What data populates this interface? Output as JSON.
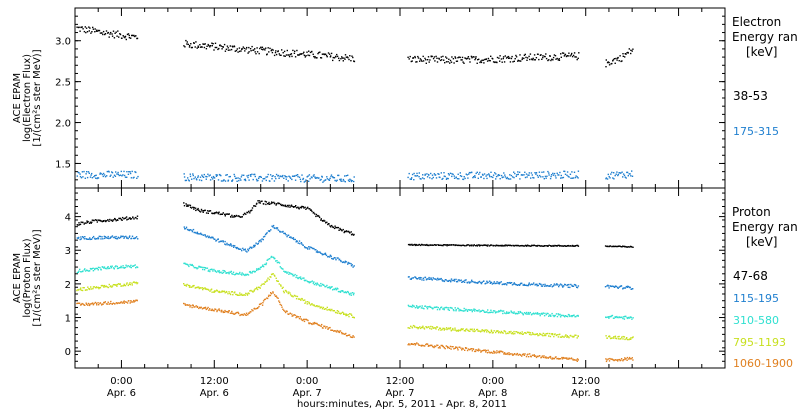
{
  "chart_data": [
    {
      "type": "scatter",
      "panel": "electron",
      "ylabel": [
        "ACE EPAM",
        "log(Electron Flux)",
        "[1/(cm²s ster MeV)]"
      ],
      "ylim": [
        1.2,
        3.4
      ],
      "yticks": [
        "1.5",
        "2.0",
        "2.5",
        "3.0"
      ],
      "ytick_values": [
        1.5,
        2.0,
        2.5,
        3.0
      ],
      "legend_title": [
        "Electron",
        "Energy ran",
        "[keV]"
      ],
      "series": [
        {
          "name": "38-53",
          "color": "#000000",
          "segments": [
            {
              "x": [
                -5.8,
                -2.0,
                2.0
              ],
              "y": [
                3.16,
                3.1,
                3.05
              ]
            },
            {
              "x": [
                8.0,
                16.0,
                24.0,
                30.0
              ],
              "y": [
                2.97,
                2.9,
                2.84,
                2.79
              ]
            },
            {
              "x": [
                37.0,
                44.0,
                52.0,
                59.0
              ],
              "y": [
                2.78,
                2.77,
                2.8,
                2.82
              ]
            },
            {
              "x": [
                62.5,
                64.5,
                66.0
              ],
              "y": [
                2.73,
                2.8,
                2.9
              ]
            }
          ]
        },
        {
          "name": "175-315",
          "color": "#1f7fcf",
          "segments": [
            {
              "x": [
                -5.8,
                2.0
              ],
              "y": [
                1.37,
                1.37
              ]
            },
            {
              "x": [
                8.0,
                30.0
              ],
              "y": [
                1.34,
                1.32
              ]
            },
            {
              "x": [
                37.0,
                59.0
              ],
              "y": [
                1.35,
                1.37
              ]
            },
            {
              "x": [
                62.5,
                66.0
              ],
              "y": [
                1.36,
                1.38
              ]
            }
          ]
        }
      ]
    },
    {
      "type": "scatter",
      "panel": "proton",
      "ylabel": [
        "ACE EPAM",
        "log(Proton Flux)",
        "[1/(cm²s ster MeV)]"
      ],
      "ylim": [
        -0.5,
        4.85
      ],
      "yticks": [
        "0",
        "1",
        "2",
        "3",
        "4"
      ],
      "ytick_values": [
        0,
        1,
        2,
        3,
        4
      ],
      "legend_title": [
        "Proton",
        "Energy ran",
        "[keV]"
      ],
      "xlabel": "hours:minutes, Apr.  5, 2011 - Apr.  8, 2011",
      "xlim": [
        -6.0,
        78.0
      ],
      "x_major_ticks": [
        0,
        12,
        24,
        36,
        48,
        60,
        72
      ],
      "x_minor_ticks": [
        -3,
        3,
        6,
        9,
        15,
        18,
        21,
        27,
        30,
        33,
        39,
        42,
        45,
        51,
        54,
        57,
        63,
        66,
        69,
        75
      ],
      "xtick_labels": [
        {
          "x": 0,
          "time": "0:00",
          "date": "Apr. 6"
        },
        {
          "x": 12,
          "time": "12:00",
          "date": "Apr. 6"
        },
        {
          "x": 24,
          "time": "0:00",
          "date": "Apr. 7"
        },
        {
          "x": 36,
          "time": "12:00",
          "date": "Apr. 7"
        },
        {
          "x": 48,
          "time": "0:00",
          "date": "Apr. 8"
        },
        {
          "x": 60,
          "time": "12:00",
          "date": "Apr. 8"
        }
      ],
      "series": [
        {
          "name": "47-68",
          "color": "#000000",
          "segments": [
            {
              "x": [
                -5.8,
                -3.0,
                0.0,
                2.0
              ],
              "y": [
                3.8,
                3.9,
                3.95,
                4.0
              ]
            },
            {
              "x": [
                8.0,
                10.0,
                13.0,
                15.0,
                16.5,
                17.5,
                20.0,
                24.0,
                26.5,
                28.5,
                30.0
              ],
              "y": [
                4.4,
                4.2,
                4.1,
                4.0,
                4.15,
                4.45,
                4.4,
                4.25,
                3.8,
                3.6,
                3.5
              ]
            },
            {
              "x": [
                37.0,
                48.0,
                59.0
              ],
              "y": [
                3.18,
                3.16,
                3.15
              ]
            },
            {
              "x": [
                62.5,
                66.0
              ],
              "y": [
                3.14,
                3.12
              ]
            }
          ]
        },
        {
          "name": "115-195",
          "color": "#1f7fcf",
          "segments": [
            {
              "x": [
                -5.8,
                -2.0,
                2.0
              ],
              "y": [
                3.38,
                3.4,
                3.4
              ]
            },
            {
              "x": [
                8.0,
                12.0,
                16.0,
                18.0,
                19.5,
                21.0,
                24.0,
                30.0
              ],
              "y": [
                3.7,
                3.35,
                3.0,
                3.3,
                3.75,
                3.5,
                3.1,
                2.55
              ]
            },
            {
              "x": [
                37.0,
                48.0,
                59.0
              ],
              "y": [
                2.2,
                2.05,
                1.95
              ]
            },
            {
              "x": [
                62.5,
                66.0
              ],
              "y": [
                1.95,
                1.9
              ]
            }
          ]
        },
        {
          "name": "310-580",
          "color": "#2fe0d0",
          "segments": [
            {
              "x": [
                -5.8,
                -2.0,
                2.0
              ],
              "y": [
                2.4,
                2.5,
                2.55
              ]
            },
            {
              "x": [
                8.0,
                12.0,
                16.0,
                18.0,
                19.5,
                21.0,
                24.0,
                30.0
              ],
              "y": [
                2.6,
                2.4,
                2.3,
                2.5,
                2.85,
                2.4,
                2.1,
                1.7
              ]
            },
            {
              "x": [
                37.0,
                48.0,
                59.0
              ],
              "y": [
                1.35,
                1.2,
                1.05
              ]
            },
            {
              "x": [
                62.5,
                66.0
              ],
              "y": [
                1.05,
                1.0
              ]
            }
          ]
        },
        {
          "name": "795-1193",
          "color": "#c8e020",
          "segments": [
            {
              "x": [
                -5.8,
                -2.0,
                2.0
              ],
              "y": [
                1.85,
                1.95,
                2.05
              ]
            },
            {
              "x": [
                8.0,
                12.0,
                16.0,
                18.0,
                19.5,
                21.0,
                24.0,
                30.0
              ],
              "y": [
                2.0,
                1.8,
                1.7,
                1.95,
                2.3,
                1.8,
                1.45,
                1.05
              ]
            },
            {
              "x": [
                37.0,
                48.0,
                59.0
              ],
              "y": [
                0.75,
                0.6,
                0.45
              ]
            },
            {
              "x": [
                62.5,
                66.0
              ],
              "y": [
                0.45,
                0.4
              ]
            }
          ]
        },
        {
          "name": "1060-1900",
          "color": "#e08020",
          "segments": [
            {
              "x": [
                -5.8,
                -2.0,
                2.0
              ],
              "y": [
                1.4,
                1.45,
                1.5
              ]
            },
            {
              "x": [
                8.0,
                12.0,
                16.0,
                18.0,
                19.5,
                21.0,
                24.0,
                30.0
              ],
              "y": [
                1.4,
                1.25,
                1.1,
                1.4,
                1.8,
                1.2,
                0.9,
                0.45
              ]
            },
            {
              "x": [
                37.0,
                48.0,
                59.0
              ],
              "y": [
                0.25,
                0.0,
                -0.25
              ]
            },
            {
              "x": [
                62.5,
                66.0
              ],
              "y": [
                -0.25,
                -0.2
              ]
            }
          ]
        }
      ]
    }
  ]
}
